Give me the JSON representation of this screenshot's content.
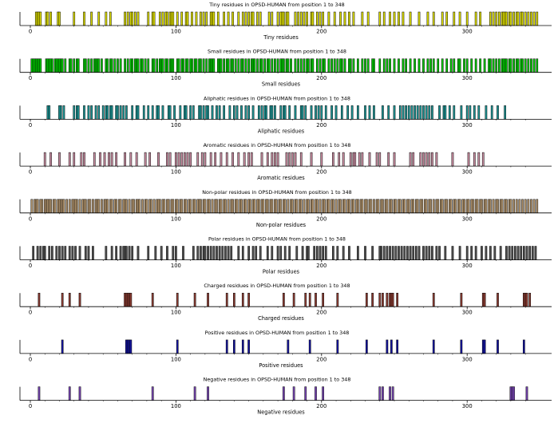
{
  "chart_data": [
    {
      "type": "bar",
      "title": "Tiny residues in OPSD-HUMAN from position 1 to 348",
      "xlabel": "Tiny residues",
      "xlim": [
        1,
        348
      ],
      "xticks": [
        "0",
        "100",
        "200",
        "300"
      ],
      "color": "#dede00",
      "positions": [
        4,
        5,
        6,
        7,
        11,
        12,
        14,
        19,
        20,
        30,
        37,
        42,
        47,
        52,
        55,
        65,
        67,
        69,
        70,
        72,
        74,
        81,
        84,
        85,
        89,
        91,
        93,
        94,
        96,
        97,
        98,
        101,
        104,
        107,
        108,
        111,
        114,
        117,
        119,
        121,
        124,
        125,
        126,
        129,
        133,
        136,
        139,
        143,
        146,
        148,
        150,
        152,
        153,
        156,
        158,
        164,
        166,
        170,
        172,
        173,
        174,
        176,
        177,
        182,
        184,
        186,
        188,
        190,
        193,
        194,
        197,
        199,
        201,
        205,
        209,
        213,
        216,
        219,
        222,
        228,
        232,
        240,
        243,
        247,
        250,
        253,
        256,
        261,
        267,
        273,
        277,
        283,
        286,
        291,
        295,
        300,
        306,
        309,
        316,
        318,
        320,
        322,
        324,
        325,
        326,
        327,
        329,
        330,
        332,
        334,
        335,
        337,
        338,
        340,
        342,
        344,
        346,
        348
      ]
    },
    {
      "type": "bar",
      "title": "Small residues in OPSD-HUMAN from position 1 to 348",
      "xlabel": "Small residues",
      "xlim": [
        1,
        348
      ],
      "xticks": [
        "0",
        "100",
        "200",
        "300"
      ],
      "color": "#00c800",
      "positions": [
        1,
        2,
        3,
        4,
        5,
        6,
        7,
        11,
        12,
        13,
        14,
        15,
        17,
        18,
        19,
        20,
        21,
        22,
        24,
        27,
        28,
        30,
        32,
        33,
        37,
        38,
        40,
        42,
        44,
        45,
        46,
        47,
        49,
        52,
        53,
        55,
        56,
        58,
        60,
        62,
        65,
        67,
        69,
        70,
        72,
        73,
        74,
        76,
        77,
        79,
        81,
        84,
        85,
        87,
        89,
        90,
        91,
        93,
        94,
        96,
        97,
        98,
        101,
        102,
        104,
        105,
        107,
        108,
        110,
        111,
        113,
        114,
        116,
        117,
        119,
        121,
        123,
        124,
        125,
        126,
        129,
        130,
        131,
        133,
        135,
        136,
        138,
        139,
        141,
        143,
        145,
        146,
        148,
        150,
        152,
        153,
        154,
        156,
        158,
        159,
        161,
        163,
        164,
        166,
        168,
        170,
        172,
        173,
        174,
        176,
        177,
        179,
        182,
        184,
        186,
        188,
        190,
        191,
        193,
        194,
        197,
        199,
        201,
        202,
        205,
        207,
        209,
        211,
        213,
        214,
        216,
        219,
        220,
        222,
        225,
        228,
        230,
        232,
        235,
        236,
        240,
        243,
        245,
        247,
        250,
        253,
        256,
        258,
        261,
        264,
        267,
        270,
        273,
        275,
        277,
        280,
        283,
        286,
        289,
        291,
        294,
        295,
        298,
        300,
        303,
        306,
        309,
        312,
        315,
        316,
        318,
        320,
        322,
        324,
        325,
        326,
        327,
        329,
        330,
        332,
        334,
        335,
        337,
        338,
        340,
        342,
        344,
        346,
        348
      ]
    },
    {
      "type": "bar",
      "title": "Aliphatic residues in OPSD-HUMAN from position 1 to 348",
      "xlabel": "Aliphatic residues",
      "xlim": [
        1,
        348
      ],
      "xticks": [
        "0",
        "100",
        "200",
        "300"
      ],
      "color": "#1e9696",
      "positions": [
        12,
        13,
        20,
        21,
        23,
        30,
        32,
        33,
        37,
        40,
        42,
        45,
        47,
        50,
        52,
        53,
        55,
        56,
        59,
        60,
        62,
        64,
        66,
        70,
        73,
        74,
        78,
        81,
        84,
        87,
        88,
        91,
        95,
        96,
        99,
        103,
        106,
        107,
        110,
        112,
        116,
        117,
        119,
        121,
        122,
        125,
        128,
        130,
        133,
        137,
        140,
        142,
        145,
        148,
        150,
        153,
        157,
        159,
        161,
        162,
        165,
        166,
        168,
        172,
        174,
        175,
        178,
        182,
        186,
        187,
        189,
        193,
        196,
        198,
        200,
        203,
        207,
        210,
        214,
        218,
        221,
        225,
        230,
        233,
        236,
        242,
        246,
        250,
        254,
        256,
        258,
        260,
        262,
        264,
        266,
        268,
        270,
        272,
        274,
        276,
        281,
        284,
        285,
        288,
        291,
        296,
        300,
        302,
        305,
        308,
        313,
        317,
        321,
        326
      ]
    },
    {
      "type": "bar",
      "title": "Aromatic residues in OPSD-HUMAN from position 1 to 348",
      "xlabel": "Aromatic residues",
      "xlim": [
        1,
        348
      ],
      "xticks": [
        "0",
        "100",
        "200",
        "300"
      ],
      "color": "#c88ca0",
      "positions": [
        10,
        14,
        20,
        27,
        30,
        35,
        37,
        44,
        48,
        51,
        54,
        56,
        59,
        65,
        69,
        73,
        79,
        82,
        88,
        94,
        96,
        100,
        102,
        104,
        106,
        108,
        110,
        115,
        118,
        120,
        124,
        127,
        131,
        135,
        139,
        143,
        147,
        150,
        152,
        159,
        163,
        166,
        168,
        170,
        176,
        178,
        180,
        182,
        186,
        193,
        200,
        208,
        212,
        215,
        220,
        222,
        223,
        226,
        228,
        233,
        238,
        240,
        246,
        250,
        261,
        263,
        268,
        270,
        272,
        274,
        276,
        279,
        290,
        301,
        305,
        308,
        311
      ]
    },
    {
      "type": "bar",
      "title": "Non-polar residues in OPSD-HUMAN from position 1 to 348",
      "xlabel": "Non-polar residues",
      "xlim": [
        1,
        348
      ],
      "xticks": [
        "0",
        "100",
        "200",
        "300"
      ],
      "color": "#b4966e",
      "positions": [
        1,
        3,
        4,
        5,
        7,
        8,
        10,
        11,
        12,
        13,
        14,
        16,
        17,
        19,
        20,
        21,
        22,
        23,
        25,
        27,
        29,
        30,
        31,
        32,
        34,
        36,
        37,
        38,
        40,
        41,
        43,
        45,
        46,
        47,
        49,
        51,
        52,
        53,
        55,
        56,
        58,
        59,
        61,
        62,
        64,
        65,
        66,
        68,
        70,
        71,
        73,
        74,
        75,
        77,
        79,
        80,
        82,
        83,
        85,
        87,
        88,
        89,
        91,
        92,
        94,
        95,
        97,
        98,
        100,
        101,
        103,
        104,
        106,
        107,
        109,
        110,
        112,
        113,
        115,
        116,
        117,
        119,
        120,
        122,
        123,
        125,
        127,
        128,
        130,
        131,
        133,
        134,
        136,
        138,
        139,
        141,
        142,
        144,
        145,
        147,
        148,
        150,
        151,
        153,
        154,
        156,
        157,
        159,
        160,
        162,
        163,
        165,
        166,
        168,
        169,
        171,
        172,
        174,
        175,
        177,
        179,
        180,
        182,
        183,
        185,
        186,
        188,
        190,
        191,
        193,
        194,
        196,
        197,
        199,
        201,
        202,
        204,
        205,
        207,
        208,
        210,
        212,
        213,
        215,
        216,
        218,
        219,
        221,
        222,
        224,
        225,
        227,
        228,
        230,
        231,
        233,
        234,
        236,
        238,
        239,
        241,
        242,
        244,
        245,
        247,
        248,
        250,
        251,
        253,
        254,
        256,
        257,
        259,
        260,
        262,
        263,
        265,
        266,
        268,
        269,
        271,
        272,
        274,
        275,
        277,
        279,
        280,
        282,
        283,
        285,
        286,
        288,
        289,
        291,
        292,
        294,
        295,
        297,
        298,
        300,
        301,
        303,
        304,
        306,
        307,
        309,
        310,
        312,
        313,
        315,
        316,
        318,
        320,
        321,
        323,
        324,
        326,
        327,
        329,
        330,
        332,
        334,
        336,
        338,
        340,
        342,
        344,
        346,
        348
      ]
    },
    {
      "type": "bar",
      "title": "Polar residues in OPSD-HUMAN from position 1 to 348",
      "xlabel": "Polar residues",
      "xlim": [
        1,
        348
      ],
      "xticks": [
        "0",
        "100",
        "200",
        "300"
      ],
      "color": "#505050",
      "positions": [
        2,
        5,
        7,
        9,
        10,
        13,
        15,
        18,
        20,
        22,
        24,
        27,
        29,
        31,
        34,
        38,
        40,
        43,
        52,
        56,
        59,
        62,
        64,
        65,
        66,
        68,
        70,
        74,
        81,
        86,
        90,
        94,
        98,
        100,
        105,
        112,
        115,
        117,
        119,
        120,
        122,
        124,
        126,
        128,
        130,
        132,
        134,
        136,
        138,
        143,
        146,
        150,
        153,
        155,
        158,
        163,
        166,
        170,
        172,
        175,
        178,
        183,
        187,
        190,
        191,
        195,
        197,
        199,
        201,
        203,
        208,
        211,
        215,
        219,
        225,
        230,
        235,
        240,
        241,
        243,
        245,
        247,
        249,
        251,
        253,
        255,
        257,
        259,
        261,
        263,
        265,
        267,
        270,
        272,
        274,
        276,
        279,
        281,
        285,
        290,
        295,
        300,
        303,
        306,
        310,
        313,
        316,
        319,
        323,
        327,
        329,
        331,
        333,
        335,
        337,
        339,
        341,
        343,
        345,
        347
      ]
    },
    {
      "type": "bar",
      "title": "Charged residues in OPSD-HUMAN from position 1 to 348",
      "xlabel": "Charged residues",
      "xlim": [
        1,
        348
      ],
      "xticks": [
        "0",
        "100",
        "200",
        "300"
      ],
      "color": "#8c3c32",
      "positions": [
        6,
        22,
        27,
        34,
        65,
        66,
        67,
        68,
        69,
        84,
        101,
        113,
        122,
        135,
        140,
        146,
        150,
        174,
        181,
        189,
        192,
        196,
        201,
        211,
        231,
        235,
        240,
        242,
        245,
        247,
        248,
        249,
        252,
        277,
        296,
        311,
        312,
        321,
        339,
        340,
        341,
        343
      ]
    },
    {
      "type": "bar",
      "title": "Positive residues in OPSD-HUMAN from position 1 to 348",
      "xlabel": "Positive residues",
      "xlim": [
        1,
        348
      ],
      "xticks": [
        "0",
        "100",
        "200",
        "300"
      ],
      "color": "#1414a0",
      "positions": [
        22,
        66,
        67,
        68,
        69,
        101,
        135,
        140,
        146,
        150,
        177,
        192,
        211,
        231,
        245,
        248,
        252,
        277,
        296,
        311,
        312,
        321,
        339
      ]
    },
    {
      "type": "bar",
      "title": "Negative residues in OPSD-HUMAN from position 1 to 348",
      "xlabel": "Negative residues",
      "xlim": [
        1,
        348
      ],
      "xticks": [
        "0",
        "100",
        "200",
        "300"
      ],
      "color": "#7846b4",
      "positions": [
        6,
        27,
        34,
        84,
        113,
        122,
        174,
        181,
        189,
        196,
        201,
        240,
        242,
        247,
        249,
        330,
        331,
        332,
        341
      ]
    }
  ]
}
